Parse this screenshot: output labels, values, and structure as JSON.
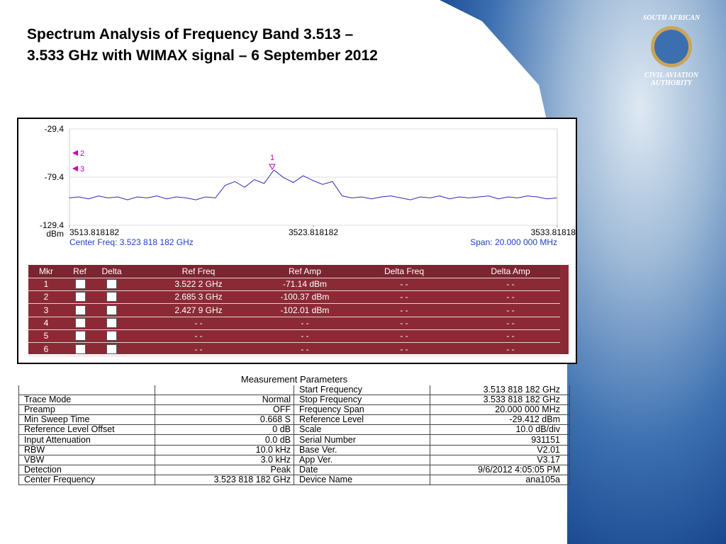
{
  "header": {
    "title_lines": [
      "Spectrum Analysis of Frequency Band 3.513 –",
      "3.533 GHz with WIMAX signal – 6 September 2012"
    ]
  },
  "logo": {
    "top": "SOUTH AFRICAN",
    "bottom": "CIVIL AVIATION",
    "bottom2": "AUTHORITY"
  },
  "chart_data": {
    "type": "line",
    "y_unit": "dBm",
    "x": [
      3513.8,
      3514.2,
      3514.6,
      3515.0,
      3515.4,
      3515.8,
      3516.2,
      3516.6,
      3517.0,
      3517.4,
      3517.8,
      3518.2,
      3518.6,
      3519.0,
      3519.4,
      3519.8,
      3520.2,
      3520.6,
      3521.0,
      3521.4,
      3521.8,
      3522.2,
      3522.6,
      3523.0,
      3523.4,
      3523.8,
      3524.2,
      3524.6,
      3525.0,
      3525.4,
      3525.8,
      3526.2,
      3526.6,
      3527.0,
      3527.4,
      3527.8,
      3528.2,
      3528.6,
      3529.0,
      3529.4,
      3529.8,
      3530.2,
      3530.6,
      3531.0,
      3531.4,
      3531.8,
      3532.2,
      3532.6,
      3533.0,
      3533.4,
      3533.8
    ],
    "series": [
      {
        "name": "Trace",
        "color": "#2b2bb0",
        "values": [
          -101,
          -100,
          -102,
          -99,
          -101,
          -100,
          -103,
          -100,
          -101,
          -99,
          -102,
          -100,
          -101,
          -103,
          -100,
          -101,
          -88,
          -84,
          -90,
          -82,
          -86,
          -72,
          -80,
          -85,
          -78,
          -83,
          -87,
          -84,
          -99,
          -101,
          -100,
          -102,
          -100,
          -99,
          -101,
          -103,
          -100,
          -101,
          -99,
          -102,
          -100,
          -101,
          -100,
          -99,
          -102,
          -100,
          -101,
          -99,
          -100,
          -102,
          -101
        ]
      }
    ],
    "xlim": [
      3513.818182,
      3533.818182
    ],
    "xticks": [
      3513.818182,
      3523.818182,
      3533.81818
    ],
    "ylim": [
      -129.4,
      -29.4
    ],
    "yticks": [
      -29.4,
      -79.4,
      -129.4
    ],
    "center_label": "Center Freq: 3.523 818 182 GHz",
    "span_label": "Span: 20.000 000 MHz",
    "marker_labels": [
      "1",
      "2",
      "3"
    ]
  },
  "markers": {
    "headers": [
      "Mkr",
      "Ref",
      "Delta",
      "Ref Freq",
      "Ref Amp",
      "Delta Freq",
      "Delta Amp"
    ],
    "rows": [
      [
        "1",
        "3.522 2 GHz",
        "-71.14 dBm",
        "- -",
        "- -"
      ],
      [
        "2",
        "2.685 3 GHz",
        "-100.37 dBm",
        "- -",
        "- -"
      ],
      [
        "3",
        "2.427 9 GHz",
        "-102.01 dBm",
        "- -",
        "- -"
      ],
      [
        "4",
        "- -",
        "- -",
        "- -",
        "- -"
      ],
      [
        "5",
        "- -",
        "- -",
        "- -",
        "- -"
      ],
      [
        "6",
        "- -",
        "- -",
        "- -",
        "- -"
      ]
    ]
  },
  "params": {
    "title": "Measurement Parameters",
    "left": [
      [
        "Trace Mode",
        "Normal"
      ],
      [
        "Preamp",
        "OFF"
      ],
      [
        "Min Sweep Time",
        "0.668 S"
      ],
      [
        "Reference Level Offset",
        "0 dB"
      ],
      [
        "Input Attenuation",
        "0.0 dB"
      ],
      [
        "RBW",
        "10.0 kHz"
      ],
      [
        "VBW",
        "3.0 kHz"
      ],
      [
        "Detection",
        "Peak"
      ],
      [
        "Center Frequency",
        "3.523 818 182 GHz"
      ]
    ],
    "right": [
      [
        "Start Frequency",
        "3.513 818 182 GHz"
      ],
      [
        "Stop Frequency",
        "3.533 818 182 GHz"
      ],
      [
        "Frequency Span",
        "20.000 000 MHz"
      ],
      [
        "Reference Level",
        "-29.412  dBm"
      ],
      [
        "Scale",
        "10.0  dB/div"
      ],
      [
        "Serial Number",
        "931151"
      ],
      [
        "Base Ver.",
        "V2.01"
      ],
      [
        "App Ver.",
        "V3.17"
      ],
      [
        "Date",
        "9/6/2012 4:05:05 PM"
      ],
      [
        "Device Name",
        "ana105a"
      ]
    ]
  }
}
